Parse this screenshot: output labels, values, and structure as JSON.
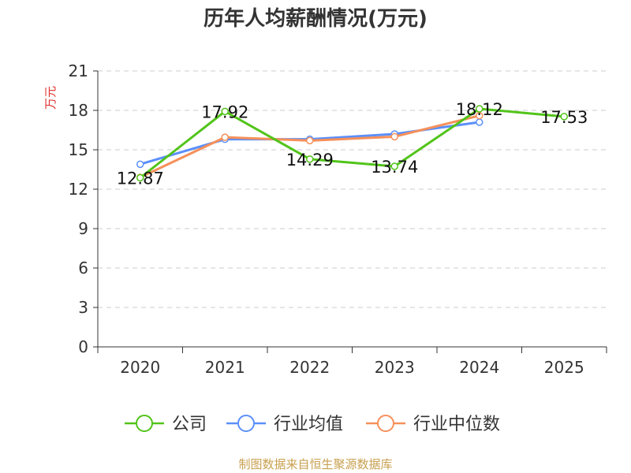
{
  "chart_data": {
    "type": "line",
    "title": "历年人均薪酬情况(万元)",
    "ylabel": "万元",
    "xlabel": "",
    "categories": [
      "2020",
      "2021",
      "2022",
      "2023",
      "2024",
      "2025"
    ],
    "ylim": [
      0,
      21
    ],
    "yticks": [
      0,
      3,
      6,
      9,
      12,
      15,
      18,
      21
    ],
    "grid": true,
    "legend_position": "bottom",
    "series": [
      {
        "name": "公司",
        "color": "#52c41a",
        "values": [
          12.87,
          17.92,
          14.29,
          13.74,
          18.12,
          17.53
        ],
        "labels": [
          "12.87",
          "17.92",
          "14.29",
          "13.74",
          "18.12",
          "17.53"
        ]
      },
      {
        "name": "行业均值",
        "color": "#5b8ff9",
        "values": [
          13.9,
          15.8,
          15.8,
          16.2,
          17.1,
          null
        ]
      },
      {
        "name": "行业中位数",
        "color": "#f6905a",
        "values": [
          12.9,
          15.95,
          15.7,
          16.0,
          17.6,
          null
        ]
      }
    ]
  },
  "source_note": "制图数据来自恒生聚源数据库",
  "colors": {
    "axis": "#333333",
    "grid": "#cccccc",
    "title": "#333333",
    "ylabel": "#e03030",
    "source": "#c8a050"
  }
}
